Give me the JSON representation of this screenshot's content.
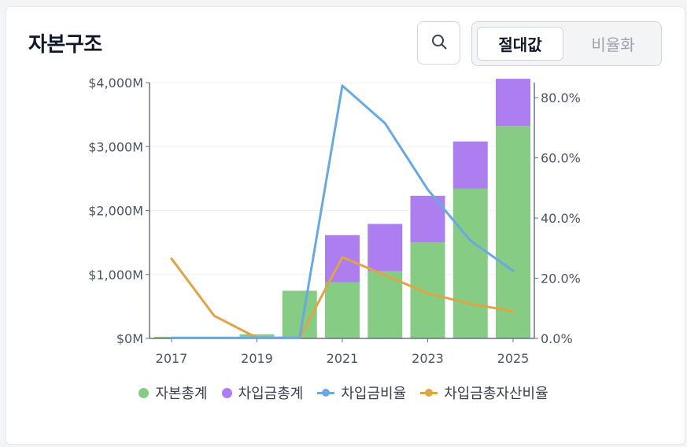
{
  "header": {
    "title": "자본구조"
  },
  "toolbar": {
    "toggle_absolute": "절대값",
    "toggle_ratio": "비율화"
  },
  "colors": {
    "equity": "#86cc85",
    "borrowings": "#ad7ef0",
    "debt_ratio": "#6aa9e0",
    "debt_asset_ratio": "#dea548"
  },
  "chart_data": {
    "type": "bar",
    "x": [
      2017,
      2018,
      2019,
      2020,
      2021,
      2022,
      2023,
      2024,
      2025
    ],
    "xticks": [
      "2017",
      "2019",
      "2021",
      "2023",
      "2025"
    ],
    "yticks_left": [
      "$0M",
      "$1,000M",
      "$2,000M",
      "$3,000M",
      "$4,000M"
    ],
    "yticks_right": [
      "0.0%",
      "20.0%",
      "40.0%",
      "60.0%",
      "80.0%"
    ],
    "ylim_left": [
      0,
      4000
    ],
    "ylim_right": [
      0,
      85
    ],
    "grid": true,
    "legend_position": "bottom",
    "series": [
      {
        "name": "자본총계",
        "kind": "bar",
        "axis": "left",
        "values": [
          25,
          8,
          65,
          745,
          880,
          1050,
          1500,
          2340,
          3320
        ]
      },
      {
        "name": "차입금총계",
        "kind": "bar",
        "axis": "left",
        "values": [
          0,
          0,
          0,
          0,
          735,
          740,
          730,
          740,
          740
        ]
      },
      {
        "name": "차입금비율",
        "kind": "line",
        "axis": "right",
        "values": [
          0.2,
          0.2,
          0.2,
          0.2,
          84,
          71.5,
          49.5,
          32.5,
          22.5
        ]
      },
      {
        "name": "차입금총자산비율",
        "kind": "line",
        "axis": "right",
        "values": [
          26.5,
          7.5,
          0.2,
          0.2,
          27,
          21,
          15,
          11.5,
          9
        ]
      }
    ]
  }
}
